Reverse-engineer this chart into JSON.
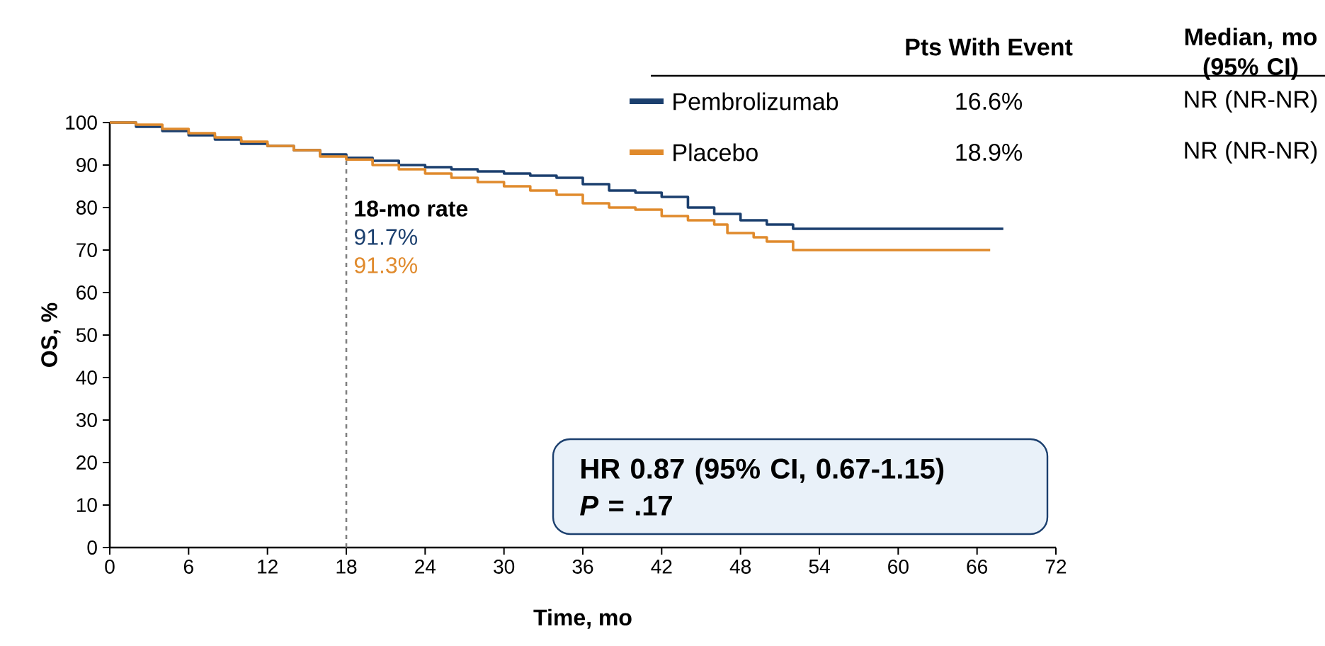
{
  "chart_data": {
    "type": "step",
    "xlabel": "Time, mo",
    "ylabel": "OS, %",
    "xlim": [
      0,
      72
    ],
    "ylim": [
      0,
      100
    ],
    "xticks": [
      0,
      6,
      12,
      18,
      24,
      30,
      36,
      42,
      48,
      54,
      60,
      66,
      72
    ],
    "yticks": [
      0,
      10,
      20,
      30,
      40,
      50,
      60,
      70,
      80,
      90,
      100
    ],
    "legend": "top right",
    "series": [
      {
        "name": "Pembrolizumab",
        "color": "#1b3f6e",
        "x": [
          0,
          2,
          4,
          6,
          8,
          10,
          12,
          14,
          16,
          18,
          20,
          22,
          24,
          26,
          28,
          30,
          32,
          34,
          36,
          38,
          40,
          42,
          44,
          46,
          48,
          50,
          52,
          68
        ],
        "values": [
          100,
          99,
          98,
          97,
          96,
          95,
          94.5,
          93.5,
          92.5,
          91.7,
          91,
          90,
          89.5,
          89,
          88.5,
          88,
          87.5,
          87,
          85.5,
          84,
          83.5,
          82.5,
          80,
          78.5,
          77,
          76,
          75,
          75
        ]
      },
      {
        "name": "Placebo",
        "color": "#e08a2c",
        "x": [
          0,
          2,
          4,
          6,
          8,
          10,
          12,
          14,
          16,
          18,
          20,
          22,
          24,
          26,
          28,
          30,
          32,
          34,
          36,
          38,
          40,
          42,
          44,
          46,
          47,
          49,
          50,
          52,
          67
        ],
        "values": [
          100,
          99.5,
          98.5,
          97.5,
          96.5,
          95.5,
          94.5,
          93.5,
          92,
          91.3,
          90,
          89,
          88,
          87,
          86,
          85,
          84,
          83,
          81,
          80,
          79.5,
          78,
          77,
          76,
          74,
          73,
          72,
          70,
          70
        ]
      }
    ],
    "ref_lines": [
      {
        "axis": "x",
        "value": 18,
        "line_style": "dashed",
        "color": "#808080"
      }
    ],
    "annotations": [
      "18-mo rate",
      "91.7%",
      "91.3%",
      "HR 0.87 (95% CI, 0.67-1.15)",
      "*P* = .17",
      "Pts With Event",
      "Median, mo (95% CI)",
      "16.6%",
      "NR (NR-NR)",
      "18.9%",
      "NR (NR-NR)"
    ]
  }
}
